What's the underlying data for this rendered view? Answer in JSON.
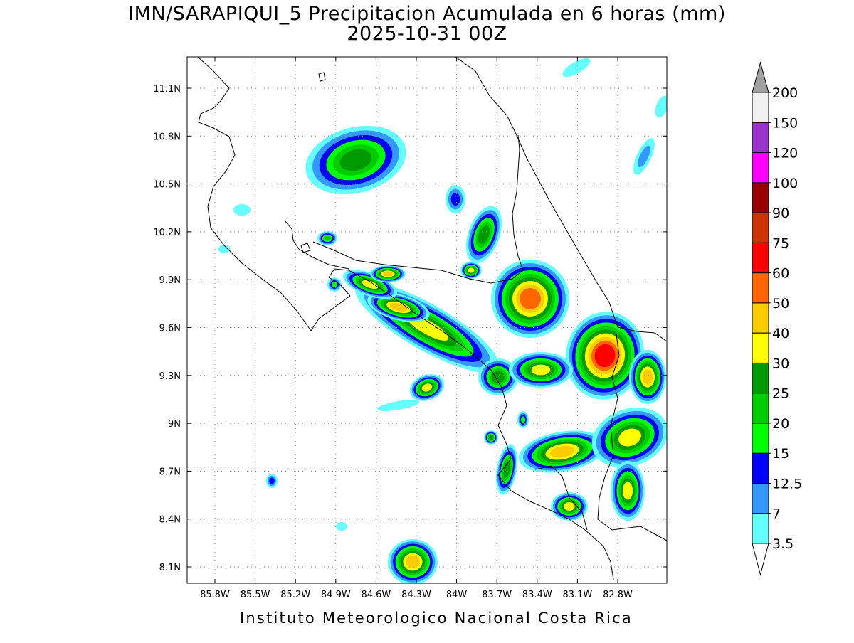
{
  "title": [
    "IMN/SARAPIQUI_5 Precipitacion Acumulada en 6 horas (mm)",
    "2025-10-31 00Z"
  ],
  "map": {
    "x_labels": [
      "85.8W",
      "85.5W",
      "85.2W",
      "84.9W",
      "84.6W",
      "84.3W",
      "84W",
      "83.7W",
      "83.4W",
      "83.1W",
      "82.8W"
    ],
    "y_labels": [
      "11.1N",
      "10.8N",
      "10.5N",
      "10.2N",
      "9.9N",
      "9.6N",
      "9.3N",
      "9N",
      "8.7N",
      "8.4N",
      "8.1N"
    ]
  },
  "colorbar": {
    "levels": [
      3.5,
      7,
      12.5,
      15,
      20,
      25,
      30,
      40,
      50,
      60,
      75,
      90,
      100,
      120,
      150,
      200
    ],
    "colors": [
      "#66ffff",
      "#3399ff",
      "#0000ff",
      "#00ff00",
      "#00cc00",
      "#009900",
      "#ffff00",
      "#ffcc00",
      "#ff6600",
      "#ff0000",
      "#cc3300",
      "#990000",
      "#ff00ff",
      "#9933cc",
      "#f0f0f0"
    ],
    "under_color": "#ffffff",
    "over_color": "#a0a0a0"
  },
  "footer": "Instituto Meteorologico Nacional Costa Rica"
}
